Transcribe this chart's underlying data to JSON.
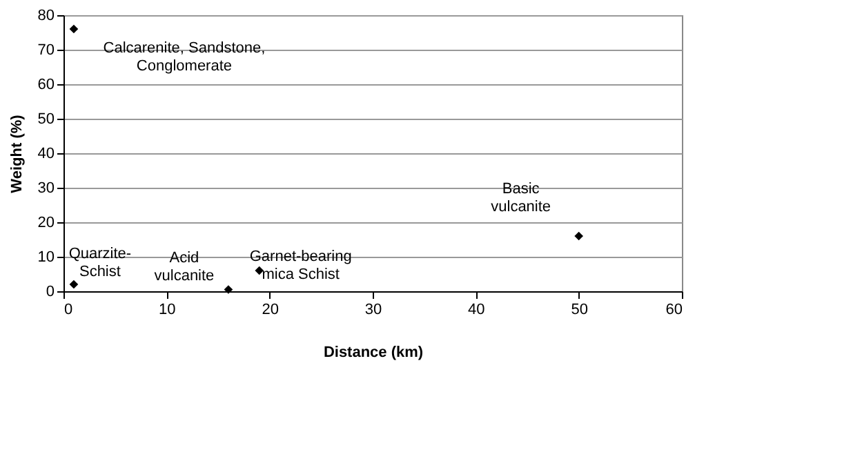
{
  "chart_data": {
    "type": "scatter",
    "xlabel": "Distance (km)",
    "ylabel": "Weight (%)",
    "x": [
      1,
      1,
      16,
      19,
      50
    ],
    "values": [
      76,
      2,
      0.5,
      6,
      16
    ],
    "color": "#000000",
    "marker": "diamond",
    "xlim": [
      0,
      60
    ],
    "xticks": [
      0,
      10,
      20,
      30,
      40,
      50,
      60
    ],
    "ylim": [
      0,
      80
    ],
    "yticks": [
      0,
      10,
      20,
      30,
      40,
      50,
      60,
      70,
      80
    ],
    "grid": "y",
    "annotations": [
      {
        "text": "Calcarenite, Sandstone,\nConglomerate",
        "x": 1,
        "y": 76
      },
      {
        "text": "Quarzite-\nSchist",
        "x": 1,
        "y": 2
      },
      {
        "text": "Acid\nvulcanite",
        "x": 16,
        "y": 0.5
      },
      {
        "text": "Garnet-bearing\nmica Schist",
        "x": 19,
        "y": 6
      },
      {
        "text": "Basic\nvulcanite",
        "x": 50,
        "y": 16
      }
    ]
  }
}
